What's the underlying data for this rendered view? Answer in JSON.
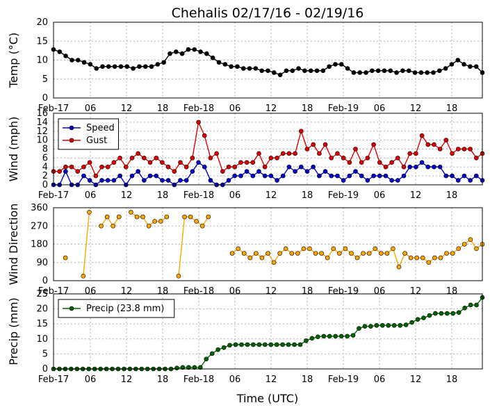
{
  "title": "Chehalis 02/17/16 - 02/19/16",
  "xlabel": "Time (UTC)",
  "xtick_labels": [
    "Feb-17",
    "06",
    "12",
    "18",
    "Feb-18",
    "06",
    "12",
    "18",
    "Feb-19",
    "06",
    "12",
    "18"
  ],
  "chart_data": [
    {
      "type": "line",
      "ylabel": "Temp (°C)",
      "ylim": [
        0,
        20
      ],
      "yticks": [
        0,
        5,
        10,
        15,
        20
      ],
      "grid": true,
      "series": [
        {
          "name": "Temp",
          "color": "#000000",
          "values": [
            12.8,
            12.2,
            11.1,
            10.0,
            10.0,
            9.4,
            8.9,
            7.8,
            8.3,
            8.3,
            8.3,
            8.3,
            8.3,
            7.8,
            8.3,
            8.3,
            8.3,
            8.9,
            9.4,
            11.7,
            12.2,
            11.7,
            12.8,
            12.8,
            12.2,
            11.7,
            10.6,
            9.4,
            8.9,
            8.3,
            8.3,
            7.8,
            7.8,
            7.8,
            7.2,
            7.2,
            6.7,
            6.1,
            7.2,
            7.2,
            7.8,
            7.2,
            7.2,
            7.2,
            7.2,
            8.3,
            8.9,
            8.9,
            7.8,
            6.7,
            6.7,
            6.7,
            7.2,
            7.2,
            7.2,
            7.2,
            6.7,
            7.2,
            7.2,
            6.7,
            6.7,
            6.7,
            6.7,
            7.2,
            7.8,
            8.9,
            10.0,
            8.9,
            8.3,
            8.3,
            6.7
          ]
        }
      ]
    },
    {
      "type": "line",
      "ylabel": "Wind (mph)",
      "ylim": [
        0,
        16
      ],
      "yticks": [
        0,
        2,
        4,
        6,
        8,
        10,
        12,
        14,
        16
      ],
      "grid": true,
      "legend": "top-left",
      "series": [
        {
          "name": "Speed",
          "color": "#0000cc",
          "values": [
            0,
            0,
            3,
            0,
            0,
            2,
            1,
            0,
            1,
            1,
            1,
            2,
            0,
            2,
            3,
            1,
            2,
            2,
            1,
            1,
            0,
            1,
            1,
            3,
            5,
            4,
            1,
            0,
            0,
            1,
            2,
            2,
            3,
            2,
            3,
            2,
            2,
            1,
            2,
            4,
            3,
            4,
            3,
            4,
            2,
            3,
            2,
            2,
            1,
            2,
            3,
            2,
            1,
            2,
            2,
            2,
            1,
            1,
            2,
            4,
            4,
            5,
            4,
            4,
            4,
            2,
            2,
            1,
            2,
            1,
            2,
            1
          ]
        },
        {
          "name": "Gust",
          "color": "#dd0000",
          "values": [
            3,
            3,
            4,
            4,
            3,
            4,
            5,
            2,
            4,
            4,
            5,
            6,
            4,
            6,
            7,
            6,
            5,
            6,
            5,
            4,
            3,
            5,
            4,
            6,
            14,
            11,
            6,
            7,
            3,
            4,
            4,
            5,
            5,
            5,
            7,
            4,
            6,
            6,
            7,
            7,
            7,
            12,
            8,
            9,
            7,
            9,
            6,
            7,
            6,
            5,
            8,
            5,
            6,
            9,
            5,
            4,
            5,
            6,
            4,
            7,
            7,
            11,
            9,
            9,
            8,
            10,
            7,
            8,
            8,
            8,
            6,
            7
          ]
        }
      ]
    },
    {
      "type": "line",
      "ylabel": "Wind Direction",
      "ylim": [
        0,
        360
      ],
      "yticks": [
        0,
        90,
        180,
        270,
        360
      ],
      "grid": true,
      "series": [
        {
          "name": "Direction",
          "color": "#ffa500",
          "values": [
            null,
            null,
            113,
            null,
            null,
            23,
            338,
            null,
            270,
            315,
            270,
            315,
            null,
            338,
            315,
            315,
            270,
            293,
            293,
            315,
            null,
            23,
            315,
            315,
            293,
            270,
            315,
            null,
            null,
            null,
            135,
            158,
            135,
            113,
            135,
            113,
            135,
            90,
            135,
            158,
            135,
            135,
            158,
            158,
            135,
            135,
            113,
            158,
            135,
            158,
            135,
            113,
            135,
            135,
            158,
            135,
            135,
            158,
            68,
            135,
            113,
            113,
            113,
            90,
            113,
            113,
            135,
            135,
            158,
            180,
            203,
            158,
            180
          ]
        }
      ]
    },
    {
      "type": "line",
      "ylabel": "Precip (mm)",
      "ylim": [
        0,
        25
      ],
      "yticks": [
        0,
        5,
        10,
        15,
        20,
        25
      ],
      "grid": true,
      "legend": "top-left",
      "series": [
        {
          "name": "Precip (23.8 mm)",
          "color": "#006400",
          "values": [
            0,
            0,
            0,
            0,
            0,
            0,
            0,
            0,
            0,
            0,
            0,
            0,
            0,
            0,
            0,
            0,
            0,
            0,
            0,
            0,
            0,
            0.3,
            0.5,
            0.5,
            0.5,
            0.5,
            3.3,
            5.1,
            6.4,
            7.1,
            7.9,
            8.1,
            8.1,
            8.1,
            8.1,
            8.1,
            8.1,
            8.1,
            8.1,
            8.1,
            8.1,
            8.1,
            8.1,
            9.4,
            10.2,
            10.7,
            10.9,
            10.9,
            10.9,
            10.9,
            10.9,
            11.2,
            13.5,
            14.2,
            14.2,
            14.5,
            14.5,
            14.5,
            14.5,
            14.5,
            14.7,
            15.5,
            16.5,
            17.0,
            17.8,
            18.5,
            18.5,
            18.5,
            18.5,
            18.8,
            20.3,
            21.3,
            21.3,
            23.8
          ]
        }
      ]
    }
  ]
}
